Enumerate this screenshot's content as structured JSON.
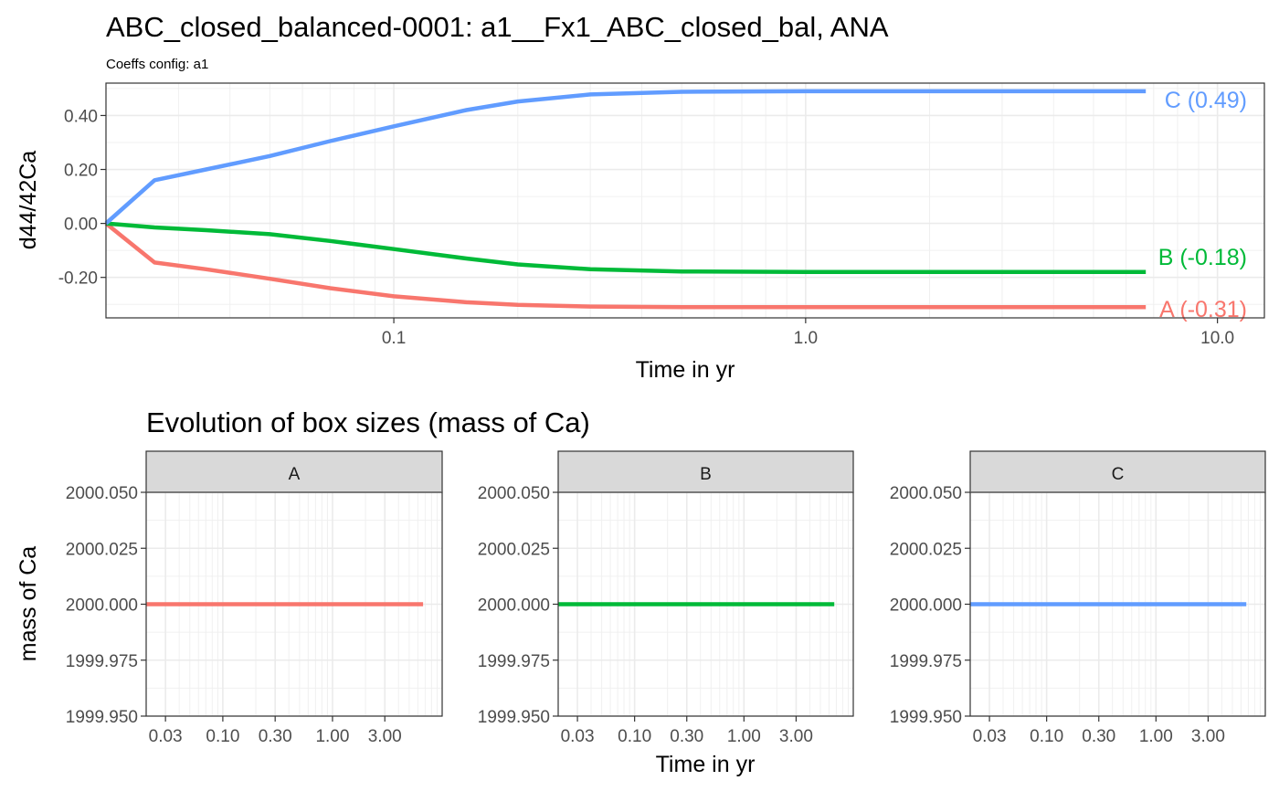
{
  "title": "ABC_closed_balanced-0001: a1__Fx1_ABC_closed_bal, ANA",
  "subtitle": "Coeffs config: a1",
  "colors": {
    "A": "#F8766D",
    "B": "#00BA38",
    "C": "#619CFF"
  },
  "chart_data": [
    {
      "type": "line",
      "xlabel": "Time in yr",
      "ylabel": "d44/42Ca",
      "x_scale": "log10",
      "xlim": [
        0.02,
        13
      ],
      "ylim": [
        -0.35,
        0.52
      ],
      "x_ticks": [
        0.1,
        1.0,
        10.0
      ],
      "x_tick_labels": [
        "0.1",
        "1.0",
        "10.0"
      ],
      "y_ticks": [
        0.4,
        0.2,
        0.0,
        -0.2
      ],
      "y_tick_labels": [
        "0.40",
        "0.20",
        "0.00",
        "-0.20"
      ],
      "grid": true,
      "series": [
        {
          "name": "A",
          "end_label": "A (-0.31)",
          "x": [
            0.02,
            0.02625,
            0.035,
            0.05,
            0.07,
            0.1,
            0.15,
            0.2,
            0.3,
            0.5,
            1.0,
            2.0,
            5.0,
            6.7
          ],
          "values": [
            0.0,
            -0.145,
            -0.17,
            -0.205,
            -0.24,
            -0.27,
            -0.292,
            -0.302,
            -0.308,
            -0.31,
            -0.31,
            -0.31,
            -0.31,
            -0.31
          ]
        },
        {
          "name": "B",
          "end_label": "B (-0.18)",
          "x": [
            0.02,
            0.02625,
            0.035,
            0.05,
            0.07,
            0.1,
            0.15,
            0.2,
            0.3,
            0.5,
            1.0,
            2.0,
            5.0,
            6.7
          ],
          "values": [
            0.0,
            -0.015,
            -0.025,
            -0.04,
            -0.065,
            -0.095,
            -0.13,
            -0.152,
            -0.17,
            -0.178,
            -0.18,
            -0.18,
            -0.18,
            -0.18
          ]
        },
        {
          "name": "C",
          "end_label": "C (0.49)",
          "x": [
            0.02,
            0.02625,
            0.035,
            0.05,
            0.07,
            0.1,
            0.15,
            0.2,
            0.3,
            0.5,
            1.0,
            2.0,
            5.0,
            6.7
          ],
          "values": [
            0.0,
            0.16,
            0.2,
            0.25,
            0.305,
            0.36,
            0.42,
            0.452,
            0.478,
            0.488,
            0.49,
            0.49,
            0.49,
            0.49
          ]
        }
      ]
    },
    {
      "type": "line",
      "title": "Evolution of box sizes (mass of Ca)",
      "xlabel": "Time in yr",
      "ylabel": "mass of Ca",
      "x_scale": "log10",
      "xlim": [
        0.02,
        10
      ],
      "ylim": [
        1999.95,
        2000.05
      ],
      "x_ticks": [
        0.03,
        0.1,
        0.3,
        1.0,
        3.0
      ],
      "x_tick_labels": [
        "0.03",
        "0.10",
        "0.30",
        "1.00",
        "3.00"
      ],
      "y_ticks": [
        2000.05,
        2000.025,
        2000.0,
        1999.975,
        1999.95
      ],
      "y_tick_labels": [
        "2000.050",
        "2000.025",
        "2000.000",
        "1999.975",
        "1999.950"
      ],
      "grid": true,
      "facets": [
        {
          "strip": "A",
          "series": "A",
          "x": [
            0.02,
            6.7
          ],
          "values": [
            2000.0,
            2000.0
          ]
        },
        {
          "strip": "B",
          "series": "B",
          "x": [
            0.02,
            6.7
          ],
          "values": [
            2000.0,
            2000.0
          ]
        },
        {
          "strip": "C",
          "series": "C",
          "x": [
            0.02,
            6.7
          ],
          "values": [
            2000.0,
            2000.0
          ]
        }
      ]
    }
  ]
}
